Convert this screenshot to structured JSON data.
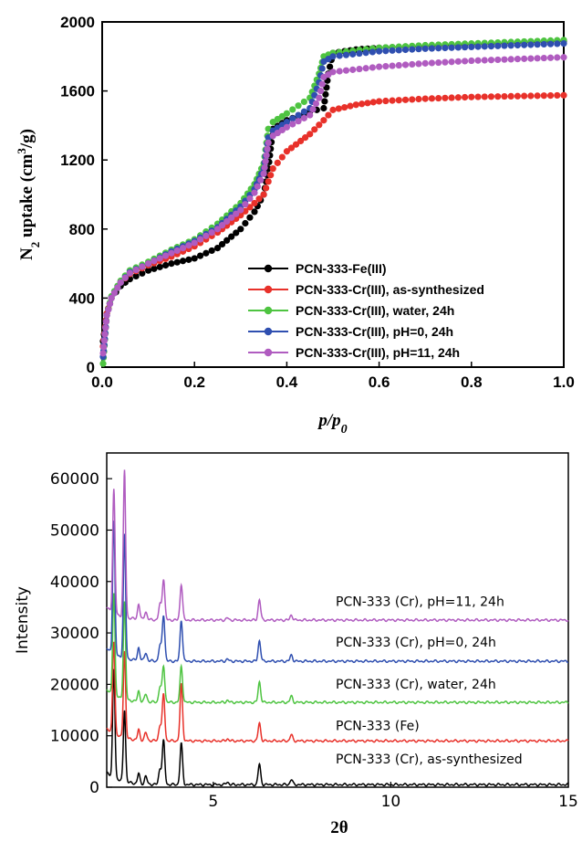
{
  "chart_data": [
    {
      "type": "scatter",
      "title": "",
      "xlabel": "p/p0",
      "ylabel": "N2 uptake (cm3/g)",
      "xlim": [
        0,
        1.0
      ],
      "ylim": [
        0,
        2000
      ],
      "x_ticks": [
        "0.0",
        "0.2",
        "0.4",
        "0.6",
        "0.8",
        "1.0"
      ],
      "y_ticks": [
        "0",
        "400",
        "800",
        "1200",
        "1600",
        "2000"
      ],
      "legend_placement": "bottom-right",
      "grid": false,
      "series": [
        {
          "name": "PCN-333-Fe(III)",
          "color": "#000000",
          "points": [
            [
              0.002,
              150
            ],
            [
              0.01,
              310
            ],
            [
              0.02,
              400
            ],
            [
              0.04,
              470
            ],
            [
              0.06,
              510
            ],
            [
              0.1,
              560
            ],
            [
              0.15,
              600
            ],
            [
              0.2,
              630
            ],
            [
              0.25,
              690
            ],
            [
              0.3,
              800
            ],
            [
              0.33,
              900
            ],
            [
              0.35,
              1000
            ],
            [
              0.36,
              1150
            ],
            [
              0.37,
              1380
            ],
            [
              0.4,
              1430
            ],
            [
              0.45,
              1480
            ],
            [
              0.48,
              1500
            ],
            [
              0.49,
              1700
            ],
            [
              0.5,
              1820
            ],
            [
              0.55,
              1840
            ],
            [
              0.6,
              1850
            ],
            [
              0.7,
              1860
            ],
            [
              0.8,
              1870
            ],
            [
              0.9,
              1880
            ],
            [
              1.0,
              1890
            ]
          ]
        },
        {
          "name": "PCN-333-Cr(III), as-synthesized",
          "color": "#e8312a",
          "points": [
            [
              0.002,
              120
            ],
            [
              0.01,
              310
            ],
            [
              0.02,
              400
            ],
            [
              0.04,
              490
            ],
            [
              0.06,
              540
            ],
            [
              0.1,
              590
            ],
            [
              0.15,
              640
            ],
            [
              0.2,
              700
            ],
            [
              0.25,
              780
            ],
            [
              0.3,
              880
            ],
            [
              0.33,
              950
            ],
            [
              0.35,
              1000
            ],
            [
              0.37,
              1150
            ],
            [
              0.4,
              1250
            ],
            [
              0.45,
              1350
            ],
            [
              0.48,
              1430
            ],
            [
              0.5,
              1490
            ],
            [
              0.55,
              1520
            ],
            [
              0.6,
              1540
            ],
            [
              0.7,
              1555
            ],
            [
              0.8,
              1565
            ],
            [
              0.9,
              1570
            ],
            [
              1.0,
              1575
            ]
          ]
        },
        {
          "name": "PCN-333-Cr(III), water, 24h",
          "color": "#4ec441",
          "points": [
            [
              0.002,
              20
            ],
            [
              0.01,
              300
            ],
            [
              0.02,
              410
            ],
            [
              0.04,
              500
            ],
            [
              0.06,
              560
            ],
            [
              0.1,
              610
            ],
            [
              0.15,
              680
            ],
            [
              0.2,
              740
            ],
            [
              0.25,
              830
            ],
            [
              0.3,
              950
            ],
            [
              0.33,
              1060
            ],
            [
              0.35,
              1180
            ],
            [
              0.36,
              1380
            ],
            [
              0.37,
              1420
            ],
            [
              0.4,
              1470
            ],
            [
              0.45,
              1560
            ],
            [
              0.47,
              1700
            ],
            [
              0.48,
              1800
            ],
            [
              0.5,
              1820
            ],
            [
              0.6,
              1850
            ],
            [
              0.7,
              1865
            ],
            [
              0.8,
              1875
            ],
            [
              0.9,
              1885
            ],
            [
              1.0,
              1895
            ]
          ]
        },
        {
          "name": "PCN-333-Cr(III), pH=0, 24h",
          "color": "#2f4fb0",
          "points": [
            [
              0.002,
              60
            ],
            [
              0.01,
              300
            ],
            [
              0.02,
              400
            ],
            [
              0.04,
              490
            ],
            [
              0.06,
              550
            ],
            [
              0.1,
              600
            ],
            [
              0.15,
              670
            ],
            [
              0.2,
              730
            ],
            [
              0.25,
              810
            ],
            [
              0.3,
              930
            ],
            [
              0.33,
              1030
            ],
            [
              0.35,
              1150
            ],
            [
              0.36,
              1330
            ],
            [
              0.37,
              1370
            ],
            [
              0.4,
              1420
            ],
            [
              0.45,
              1500
            ],
            [
              0.47,
              1650
            ],
            [
              0.48,
              1770
            ],
            [
              0.5,
              1800
            ],
            [
              0.6,
              1830
            ],
            [
              0.7,
              1845
            ],
            [
              0.8,
              1855
            ],
            [
              0.9,
              1865
            ],
            [
              1.0,
              1875
            ]
          ]
        },
        {
          "name": "PCN-333-Cr(III), pH=11, 24h",
          "color": "#b05cc0",
          "points": [
            [
              0.002,
              80
            ],
            [
              0.01,
              300
            ],
            [
              0.02,
              400
            ],
            [
              0.04,
              490
            ],
            [
              0.06,
              545
            ],
            [
              0.1,
              600
            ],
            [
              0.15,
              660
            ],
            [
              0.2,
              720
            ],
            [
              0.25,
              800
            ],
            [
              0.3,
              910
            ],
            [
              0.33,
              1010
            ],
            [
              0.35,
              1120
            ],
            [
              0.36,
              1300
            ],
            [
              0.37,
              1340
            ],
            [
              0.4,
              1390
            ],
            [
              0.45,
              1460
            ],
            [
              0.47,
              1560
            ],
            [
              0.48,
              1680
            ],
            [
              0.5,
              1710
            ],
            [
              0.6,
              1740
            ],
            [
              0.7,
              1760
            ],
            [
              0.8,
              1775
            ],
            [
              0.9,
              1785
            ],
            [
              1.0,
              1795
            ]
          ]
        }
      ]
    },
    {
      "type": "line",
      "title": "",
      "xlabel": "2θ",
      "ylabel": "Intensity",
      "xlim": [
        2,
        15
      ],
      "ylim": [
        0,
        65000
      ],
      "x_ticks": [
        "5",
        "10",
        "15"
      ],
      "y_ticks": [
        "0",
        "10000",
        "20000",
        "30000",
        "40000",
        "50000",
        "60000"
      ],
      "grid": false,
      "peaks_2theta": [
        2.2,
        2.5,
        2.9,
        3.1,
        3.5,
        3.6,
        4.1,
        5.4,
        6.3,
        7.2
      ],
      "series": [
        {
          "name": "PCN-333 (Cr), as-synthesized",
          "color": "#000000",
          "baseline": 500,
          "peak_heights": [
            21000,
            14000,
            2000,
            1500,
            3000,
            8500,
            8000,
            500,
            4000,
            1000
          ]
        },
        {
          "name": "PCN-333 (Fe)",
          "color": "#e8312a",
          "baseline": 9000,
          "peak_heights": [
            18000,
            17000,
            2000,
            1500,
            3000,
            9000,
            11000,
            400,
            3500,
            1200
          ]
        },
        {
          "name": "PCN-333 (Cr), water, 24h",
          "color": "#4ec441",
          "baseline": 16500,
          "peak_heights": [
            20000,
            19000,
            2000,
            1500,
            3000,
            7000,
            7000,
            400,
            4000,
            1200
          ]
        },
        {
          "name": "PCN-333 (Cr), pH=0, 24h",
          "color": "#2f4fb0",
          "baseline": 24500,
          "peak_heights": [
            26000,
            24000,
            2500,
            1500,
            3000,
            9000,
            8000,
            400,
            4000,
            1200
          ]
        },
        {
          "name": "PCN-333 (Cr), pH=11, 24h",
          "color": "#b05cc0",
          "baseline": 32500,
          "peak_heights": [
            24000,
            28500,
            3000,
            1500,
            3000,
            8000,
            7000,
            400,
            4000,
            1000
          ]
        }
      ]
    }
  ]
}
